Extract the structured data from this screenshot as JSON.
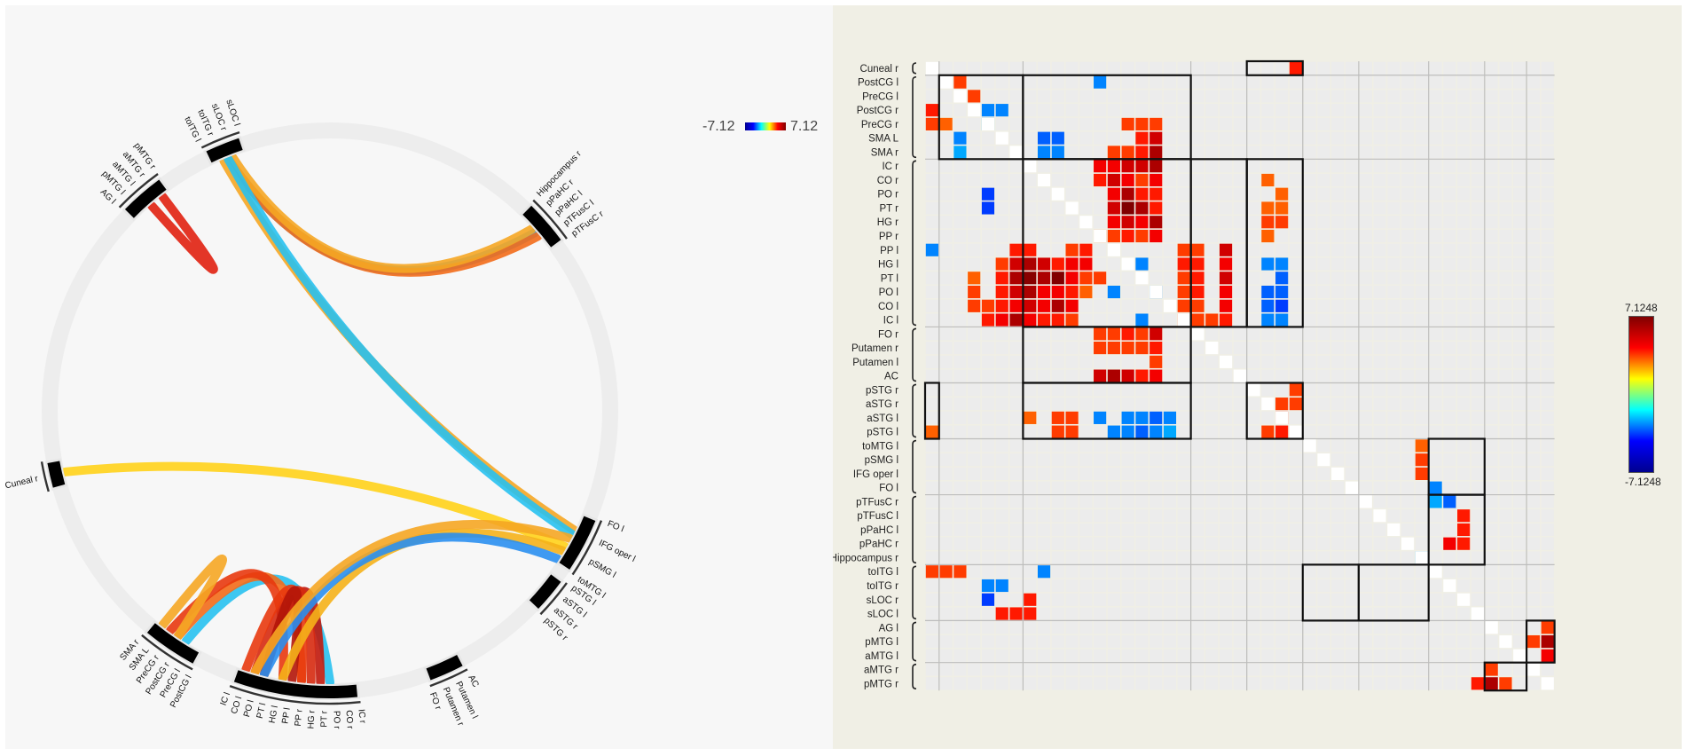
{
  "connectome": {
    "scale_min": "-7.12",
    "scale_max": "7.12",
    "node_groups": [
      {
        "name": "ring-group-temporal-inf-l",
        "labels": [
          "toITG l",
          "toITG r",
          "sLOC r",
          "sLOC l"
        ]
      },
      {
        "name": "ring-group-angular-mtg",
        "labels": [
          "AG l",
          "pMTG l",
          "aMTG l",
          "aMTG r",
          "pMTG r"
        ]
      },
      {
        "name": "ring-group-hippocampus-fusiform",
        "labels": [
          "Hippocampus r",
          "pPaHC r",
          "pPaHC l",
          "pTFusC l",
          "pTFusC r"
        ]
      },
      {
        "name": "ring-group-cuneal",
        "labels": [
          "Cuneal r"
        ]
      },
      {
        "name": "ring-group-frontal-operculum-smg",
        "labels": [
          "FO l",
          "IFG oper l",
          "pSMG l",
          "toMTG l"
        ]
      },
      {
        "name": "ring-group-stg",
        "labels": [
          "pSTG l",
          "aSTG l",
          "aSTG r",
          "pSTG r"
        ]
      },
      {
        "name": "ring-group-striatum",
        "labels": [
          "AC",
          "Putamen l",
          "Putamen r",
          "FO r"
        ]
      },
      {
        "name": "ring-group-sensorimotor",
        "labels": [
          "PostCG l",
          "PreCG l",
          "PostCG r",
          "PreCG r",
          "SMA L",
          "SMA r"
        ]
      },
      {
        "name": "ring-group-auditory-insula",
        "labels": [
          "IC r",
          "CO r",
          "PO r",
          "PT r",
          "HG r",
          "PP r",
          "PP l",
          "HG l",
          "PT l",
          "PO l",
          "CO l",
          "IC l"
        ]
      }
    ]
  },
  "chart_data": {
    "type": "heatmap",
    "rows": [
      "Cuneal r",
      "PostCG l",
      "PreCG l",
      "PostCG r",
      "PreCG r",
      "SMA L",
      "SMA r",
      "IC r",
      "CO r",
      "PO r",
      "PT r",
      "HG r",
      "PP r",
      "PP l",
      "HG l",
      "PT l",
      "PO l",
      "CO l",
      "IC l",
      "FO r",
      "Putamen r",
      "Putamen l",
      "AC",
      "pSTG r",
      "aSTG r",
      "aSTG l",
      "pSTG l",
      "toMTG l",
      "pSMG l",
      "IFG oper l",
      "FO l",
      "pTFusC r",
      "pTFusC l",
      "pPaHC l",
      "pPaHC r",
      "Hippocampus r",
      "toITG l",
      "toITG r",
      "sLOC r",
      "sLOC l",
      "AG l",
      "pMTG l",
      "aMTG l",
      "aMTG r",
      "pMTG r"
    ],
    "columns_same_as_rows": true,
    "colorbar_max": "7.1248",
    "colorbar_min": "-7.1248",
    "colormap": "jet",
    "grid": true,
    "cells": [
      [
        0,
        26,
        5.0
      ],
      [
        1,
        2,
        4.5
      ],
      [
        1,
        12,
        -3.5
      ],
      [
        2,
        3,
        4.5
      ],
      [
        2,
        2,
        0
      ],
      [
        3,
        0,
        5.0
      ],
      [
        3,
        4,
        -3.5
      ],
      [
        3,
        5,
        -3.5
      ],
      [
        4,
        0,
        4.5
      ],
      [
        4,
        1,
        4.0
      ],
      [
        4,
        4,
        -3.0
      ],
      [
        4,
        14,
        4.5
      ],
      [
        4,
        15,
        4.5
      ],
      [
        4,
        16,
        4.5
      ],
      [
        5,
        2,
        -3.5
      ],
      [
        5,
        8,
        -4.0
      ],
      [
        5,
        9,
        -4.0
      ],
      [
        5,
        15,
        5.0
      ],
      [
        5,
        16,
        6.0
      ],
      [
        6,
        2,
        -3.0
      ],
      [
        6,
        8,
        -3.5
      ],
      [
        6,
        9,
        -3.5
      ],
      [
        6,
        13,
        4.5
      ],
      [
        6,
        14,
        4.5
      ],
      [
        6,
        15,
        5.0
      ],
      [
        6,
        16,
        6.5
      ],
      [
        7,
        12,
        5.5
      ],
      [
        7,
        13,
        5.5
      ],
      [
        7,
        14,
        6.0
      ],
      [
        7,
        15,
        6.0
      ],
      [
        7,
        16,
        6.5
      ],
      [
        8,
        12,
        5.0
      ],
      [
        8,
        13,
        6.0
      ],
      [
        8,
        14,
        5.5
      ],
      [
        8,
        15,
        4.5
      ],
      [
        8,
        16,
        5.5
      ],
      [
        8,
        24,
        4.0
      ],
      [
        9,
        4,
        -4.5
      ],
      [
        9,
        13,
        5.5
      ],
      [
        9,
        14,
        6.5
      ],
      [
        9,
        15,
        5.0
      ],
      [
        9,
        16,
        5.0
      ],
      [
        9,
        25,
        4.0
      ],
      [
        10,
        4,
        -4.5
      ],
      [
        10,
        13,
        6.0
      ],
      [
        10,
        14,
        7.1
      ],
      [
        10,
        15,
        6.5
      ],
      [
        10,
        16,
        5.0
      ],
      [
        10,
        24,
        4.0
      ],
      [
        10,
        25,
        4.0
      ],
      [
        11,
        13,
        5.5
      ],
      [
        11,
        14,
        6.0
      ],
      [
        11,
        15,
        5.5
      ],
      [
        11,
        16,
        6.5
      ],
      [
        11,
        24,
        4.5
      ],
      [
        11,
        25,
        4.5
      ],
      [
        12,
        12,
        4.0
      ],
      [
        12,
        13,
        4.5
      ],
      [
        12,
        14,
        5.0
      ],
      [
        12,
        15,
        4.5
      ],
      [
        12,
        16,
        5.5
      ],
      [
        12,
        24,
        4.0
      ],
      [
        13,
        0,
        -3.5
      ],
      [
        13,
        6,
        5.0
      ],
      [
        13,
        7,
        5.0
      ],
      [
        13,
        10,
        4.5
      ],
      [
        13,
        11,
        5.0
      ],
      [
        13,
        18,
        4.5
      ],
      [
        13,
        19,
        4.5
      ],
      [
        13,
        21,
        6.0
      ],
      [
        14,
        5,
        4.5
      ],
      [
        14,
        6,
        6.0
      ],
      [
        14,
        7,
        6.5
      ],
      [
        14,
        8,
        6.0
      ],
      [
        14,
        9,
        5.0
      ],
      [
        14,
        10,
        5.5
      ],
      [
        14,
        11,
        5.5
      ],
      [
        14,
        15,
        -3.5
      ],
      [
        14,
        18,
        5.0
      ],
      [
        14,
        19,
        5.0
      ],
      [
        14,
        21,
        5.5
      ],
      [
        14,
        24,
        -3.5
      ],
      [
        14,
        25,
        -3.5
      ],
      [
        15,
        3,
        4.0
      ],
      [
        15,
        5,
        5.0
      ],
      [
        15,
        6,
        6.5
      ],
      [
        15,
        7,
        7.0
      ],
      [
        15,
        8,
        6.5
      ],
      [
        15,
        9,
        7.1
      ],
      [
        15,
        10,
        5.5
      ],
      [
        15,
        11,
        4.5
      ],
      [
        15,
        12,
        4.5
      ],
      [
        15,
        18,
        4.5
      ],
      [
        15,
        19,
        5.0
      ],
      [
        15,
        21,
        6.0
      ],
      [
        15,
        25,
        -4.0
      ],
      [
        16,
        3,
        4.5
      ],
      [
        16,
        5,
        5.0
      ],
      [
        16,
        6,
        6.0
      ],
      [
        16,
        7,
        6.5
      ],
      [
        16,
        8,
        5.5
      ],
      [
        16,
        9,
        5.5
      ],
      [
        16,
        10,
        5.0
      ],
      [
        16,
        11,
        4.0
      ],
      [
        16,
        13,
        -3.5
      ],
      [
        16,
        16,
        -3.5
      ],
      [
        16,
        18,
        4.5
      ],
      [
        16,
        19,
        5.0
      ],
      [
        16,
        21,
        5.5
      ],
      [
        16,
        24,
        -4.0
      ],
      [
        16,
        25,
        -4.0
      ],
      [
        17,
        3,
        4.5
      ],
      [
        17,
        4,
        4.5
      ],
      [
        17,
        5,
        5.0
      ],
      [
        17,
        6,
        5.5
      ],
      [
        17,
        7,
        6.0
      ],
      [
        17,
        8,
        5.5
      ],
      [
        17,
        9,
        6.5
      ],
      [
        17,
        10,
        5.5
      ],
      [
        17,
        18,
        4.5
      ],
      [
        17,
        19,
        4.5
      ],
      [
        17,
        21,
        5.5
      ],
      [
        17,
        24,
        -4.0
      ],
      [
        17,
        25,
        -4.5
      ],
      [
        18,
        4,
        5.0
      ],
      [
        18,
        5,
        5.5
      ],
      [
        18,
        6,
        6.5
      ],
      [
        18,
        7,
        5.5
      ],
      [
        18,
        8,
        5.0
      ],
      [
        18,
        9,
        5.0
      ],
      [
        18,
        10,
        4.5
      ],
      [
        18,
        15,
        -3.5
      ],
      [
        18,
        18,
        4.5
      ],
      [
        18,
        19,
        4.5
      ],
      [
        18,
        20,
        4.5
      ],
      [
        18,
        21,
        5.0
      ],
      [
        18,
        24,
        -3.5
      ],
      [
        18,
        25,
        -3.5
      ],
      [
        19,
        12,
        4.5
      ],
      [
        19,
        13,
        4.5
      ],
      [
        19,
        14,
        5.0
      ],
      [
        19,
        15,
        4.5
      ],
      [
        19,
        16,
        6.0
      ],
      [
        20,
        12,
        4.5
      ],
      [
        20,
        13,
        4.5
      ],
      [
        20,
        14,
        4.5
      ],
      [
        20,
        15,
        4.5
      ],
      [
        20,
        16,
        5.0
      ],
      [
        21,
        16,
        4.5
      ],
      [
        22,
        12,
        6.0
      ],
      [
        22,
        13,
        6.5
      ],
      [
        22,
        14,
        6.0
      ],
      [
        22,
        15,
        5.0
      ],
      [
        22,
        16,
        5.5
      ],
      [
        23,
        26,
        4.5
      ],
      [
        24,
        25,
        4.5
      ],
      [
        24,
        26,
        4.5
      ],
      [
        25,
        7,
        4.0
      ],
      [
        25,
        9,
        4.5
      ],
      [
        25,
        10,
        4.5
      ],
      [
        25,
        12,
        -3.5
      ],
      [
        25,
        14,
        -3.5
      ],
      [
        25,
        15,
        -3.5
      ],
      [
        25,
        16,
        -4.0
      ],
      [
        25,
        17,
        -3.5
      ],
      [
        25,
        25,
        5.0
      ],
      [
        26,
        0,
        4.0
      ],
      [
        26,
        9,
        4.5
      ],
      [
        26,
        10,
        4.5
      ],
      [
        26,
        13,
        -3.5
      ],
      [
        26,
        14,
        -3.5
      ],
      [
        26,
        15,
        -4.0
      ],
      [
        26,
        16,
        -3.5
      ],
      [
        26,
        17,
        -3.0
      ],
      [
        26,
        24,
        4.5
      ],
      [
        26,
        25,
        5.0
      ],
      [
        27,
        35,
        4.0
      ],
      [
        28,
        35,
        4.5
      ],
      [
        29,
        35,
        4.5
      ],
      [
        30,
        36,
        -3.5
      ],
      [
        31,
        36,
        -3.0
      ],
      [
        31,
        37,
        -4.0
      ],
      [
        32,
        38,
        5.0
      ],
      [
        33,
        38,
        5.0
      ],
      [
        34,
        37,
        5.5
      ],
      [
        34,
        38,
        5.0
      ],
      [
        35,
        35,
        -3.0
      ],
      [
        36,
        0,
        4.5
      ],
      [
        36,
        1,
        4.5
      ],
      [
        36,
        2,
        4.5
      ],
      [
        36,
        8,
        -3.5
      ],
      [
        37,
        4,
        -3.5
      ],
      [
        37,
        5,
        -3.5
      ],
      [
        38,
        4,
        -4.5
      ],
      [
        38,
        7,
        5.0
      ],
      [
        39,
        5,
        5.0
      ],
      [
        39,
        6,
        5.0
      ],
      [
        39,
        7,
        5.0
      ],
      [
        40,
        44,
        4.5
      ],
      [
        41,
        43,
        4.5
      ],
      [
        41,
        44,
        6.5
      ],
      [
        42,
        44,
        5.5
      ],
      [
        43,
        40,
        4.5
      ],
      [
        44,
        39,
        5.0
      ],
      [
        44,
        40,
        6.5
      ],
      [
        44,
        41,
        4.5
      ]
    ]
  }
}
